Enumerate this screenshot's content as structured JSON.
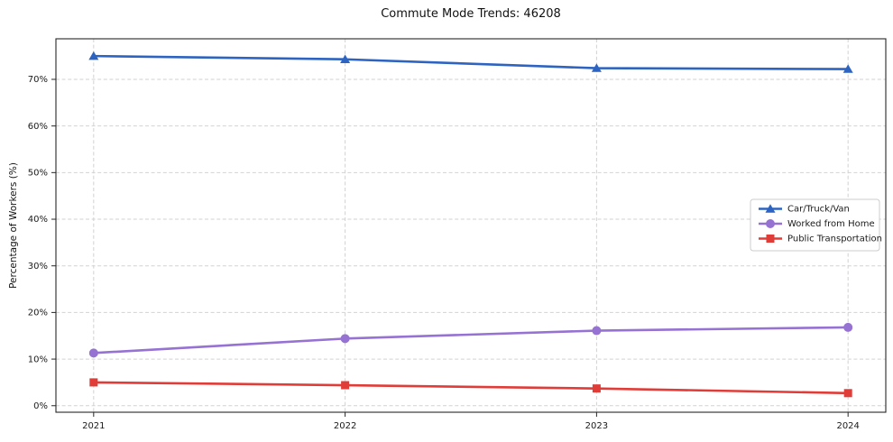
{
  "chart_data": {
    "type": "line",
    "title": "Commute Mode Trends: 46208",
    "xlabel": "",
    "ylabel": "Percentage of Workers (%)",
    "categories": [
      "2021",
      "2022",
      "2023",
      "2024"
    ],
    "series": [
      {
        "name": "Car/Truck/Van",
        "marker": "triangle",
        "color": "#2e64c1",
        "values": [
          75.0,
          74.3,
          72.4,
          72.2
        ]
      },
      {
        "name": "Worked from Home",
        "marker": "circle",
        "color": "#9672d2",
        "values": [
          11.3,
          14.4,
          16.1,
          16.8
        ]
      },
      {
        "name": "Public Transportation",
        "marker": "square",
        "color": "#e03c38",
        "values": [
          5.0,
          4.4,
          3.7,
          2.7
        ]
      }
    ],
    "ylim": [
      -1.4,
      78.7
    ],
    "yticks": [
      0,
      10,
      20,
      30,
      40,
      50,
      60,
      70
    ],
    "ytick_labels": [
      "0%",
      "10%",
      "20%",
      "30%",
      "40%",
      "50%",
      "60%",
      "70%"
    ],
    "grid": true,
    "grid_style": "dashed",
    "legend_position": "right-center"
  },
  "colors": {
    "background": "#ffffff",
    "grid": "#d2d2d2",
    "spine": "#262626",
    "tick": "#262626",
    "text": "#1a1a1a",
    "legend_border": "#cccccc",
    "legend_bg": "#ffffff"
  }
}
